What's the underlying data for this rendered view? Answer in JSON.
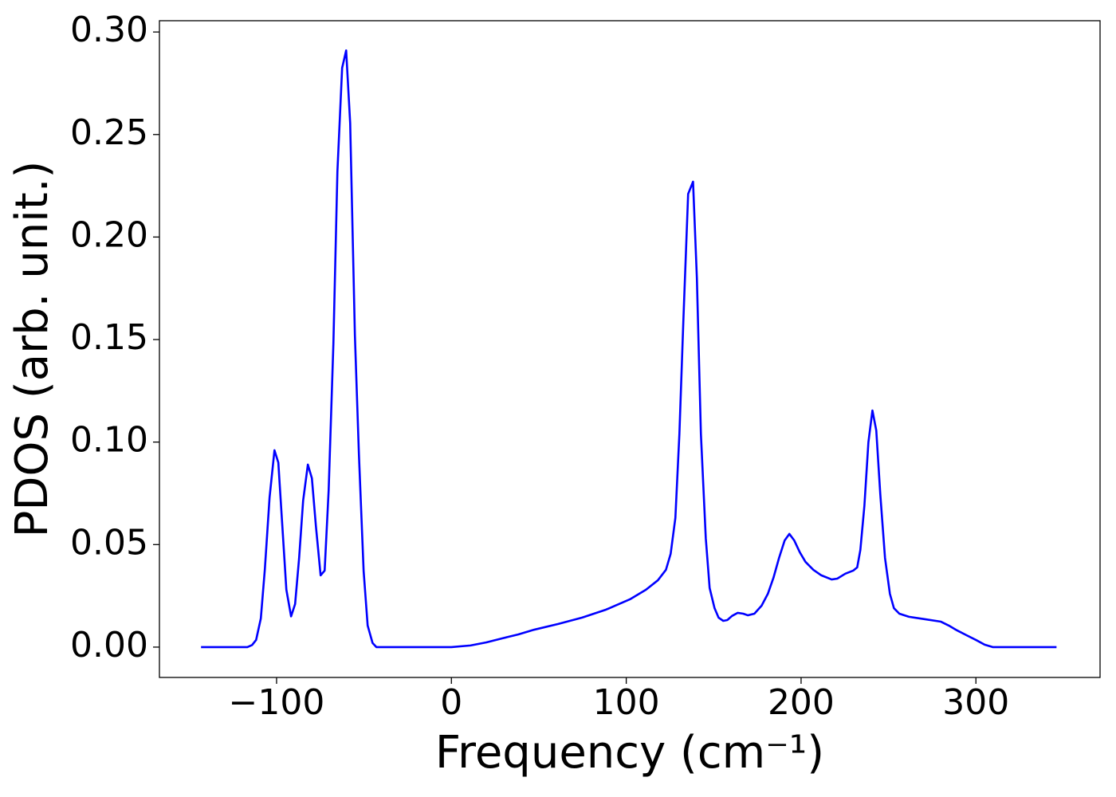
{
  "chart_data": {
    "type": "line",
    "xlabel": "Frequency (cm⁻¹)",
    "ylabel": "PDOS (arb. unit.)",
    "xlim": [
      -167,
      371
    ],
    "ylim": [
      -0.0148,
      0.3055
    ],
    "xticks": [
      {
        "value": -100,
        "label": "−100"
      },
      0,
      100,
      200,
      300
    ],
    "yticks": [
      {
        "value": 0,
        "label": "0.00"
      },
      {
        "value": 0.05,
        "label": "0.05"
      },
      {
        "value": 0.1,
        "label": "0.10"
      },
      {
        "value": 0.15,
        "label": "0.15"
      },
      {
        "value": 0.2,
        "label": "0.20"
      },
      {
        "value": 0.25,
        "label": "0.25"
      },
      {
        "value": 0.3,
        "label": "0.30"
      }
    ],
    "series": [
      {
        "name": "PDOS",
        "color": "#0000ff",
        "x": [
          -143.2,
          -116.7,
          -114,
          -111.7,
          -109,
          -106.7,
          -104,
          -101.2,
          -99,
          -96.7,
          -94.4,
          -91.7,
          -89.4,
          -87.1,
          -84.8,
          -82.1,
          -79.8,
          -77.5,
          -74.8,
          -72.5,
          -70.2,
          -67.5,
          -65.2,
          -62.5,
          -60.2,
          -57.9,
          -55.2,
          -52.9,
          -50.2,
          -47.9,
          -45.1,
          -42.9,
          0,
          10.9,
          20,
          29.2,
          38.3,
          47.4,
          61.1,
          74.8,
          88.5,
          102.1,
          111.3,
          118.1,
          122.7,
          125.4,
          128.1,
          130.4,
          132.7,
          135.4,
          138.2,
          140.4,
          142.7,
          145.5,
          147.7,
          150.5,
          152.8,
          155.5,
          157.8,
          160.5,
          163.7,
          166.9,
          169.6,
          173.3,
          177.4,
          181,
          184.2,
          187.4,
          190.6,
          193.3,
          196.1,
          199.3,
          202.5,
          207,
          211.6,
          217.5,
          220.7,
          225.3,
          229.8,
          232.1,
          233.9,
          236.2,
          238.5,
          240.8,
          243,
          245.3,
          248,
          250.8,
          253.1,
          256.2,
          261.7,
          270.9,
          280,
          284.5,
          289.1,
          294.6,
          300,
          305,
          309.6,
          346.1
        ],
        "values": [
          0,
          0,
          0.001,
          0.0035,
          0.014,
          0.038,
          0.073,
          0.096,
          0.09,
          0.059,
          0.028,
          0.015,
          0.021,
          0.0435,
          0.0715,
          0.089,
          0.0824,
          0.059,
          0.035,
          0.0373,
          0.0766,
          0.148,
          0.232,
          0.2825,
          0.291,
          0.2555,
          0.152,
          0.094,
          0.037,
          0.0105,
          0.002,
          0,
          0,
          0.0008,
          0.0023,
          0.0043,
          0.0062,
          0.0085,
          0.0113,
          0.0144,
          0.0183,
          0.0233,
          0.028,
          0.0326,
          0.0377,
          0.0455,
          0.063,
          0.104,
          0.16,
          0.221,
          0.227,
          0.18,
          0.104,
          0.053,
          0.0288,
          0.019,
          0.0144,
          0.0128,
          0.0132,
          0.0152,
          0.0167,
          0.0163,
          0.0155,
          0.0163,
          0.0202,
          0.026,
          0.0338,
          0.0435,
          0.052,
          0.0552,
          0.052,
          0.0462,
          0.0416,
          0.0377,
          0.035,
          0.033,
          0.0334,
          0.0358,
          0.0373,
          0.0389,
          0.0474,
          0.0688,
          0.0999,
          0.1154,
          0.1057,
          0.0746,
          0.0435,
          0.026,
          0.019,
          0.0163,
          0.0148,
          0.0136,
          0.0124,
          0.0105,
          0.0082,
          0.0058,
          0.0035,
          0.0012,
          0,
          0
        ]
      }
    ]
  }
}
